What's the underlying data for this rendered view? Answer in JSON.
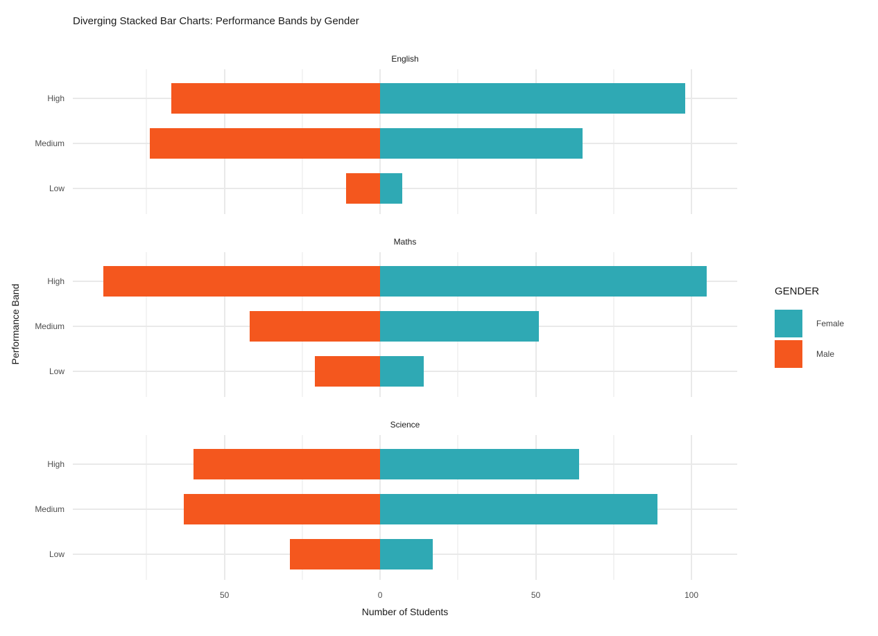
{
  "colors": {
    "female": "#2fa9b4",
    "male": "#f4571e",
    "grid_major": "#e9e9e9",
    "grid_minor": "#f3f3f3",
    "tick_text": "#4d4d4d",
    "title_text": "#1a1a1a"
  },
  "chart_data": {
    "type": "bar",
    "subtype": "diverging-stacked-horizontal",
    "title": "Diverging Stacked Bar Charts: Performance Bands by Gender",
    "xlabel": "Number of Students",
    "ylabel": "Performance Band",
    "grid": true,
    "legend_position": "right",
    "y_categories": [
      "High",
      "Medium",
      "Low"
    ],
    "xlim": [
      -98.7,
      114.7
    ],
    "x_ticks": [
      {
        "value": -50,
        "label": "50"
      },
      {
        "value": 0,
        "label": "0"
      },
      {
        "value": 50,
        "label": "50"
      },
      {
        "value": 100,
        "label": "100"
      }
    ],
    "x_minor_ticks": [
      -75,
      -25,
      25,
      75
    ],
    "note": "Male counts plotted to the left of zero (negative direction), Female counts to the right (positive).",
    "facets": [
      {
        "name": "English",
        "rows": [
          {
            "band": "High",
            "male": 67,
            "female": 98
          },
          {
            "band": "Medium",
            "male": 74,
            "female": 65
          },
          {
            "band": "Low",
            "male": 11,
            "female": 7
          }
        ]
      },
      {
        "name": "Maths",
        "rows": [
          {
            "band": "High",
            "male": 89,
            "female": 105
          },
          {
            "band": "Medium",
            "male": 42,
            "female": 51
          },
          {
            "band": "Low",
            "male": 21,
            "female": 14
          }
        ]
      },
      {
        "name": "Science",
        "rows": [
          {
            "band": "High",
            "male": 60,
            "female": 64
          },
          {
            "band": "Medium",
            "male": 63,
            "female": 89
          },
          {
            "band": "Low",
            "male": 29,
            "female": 17
          }
        ]
      }
    ],
    "legend": {
      "title": "GENDER",
      "items": [
        {
          "label": "Female",
          "color_key": "female"
        },
        {
          "label": "Male",
          "color_key": "male"
        }
      ]
    }
  }
}
